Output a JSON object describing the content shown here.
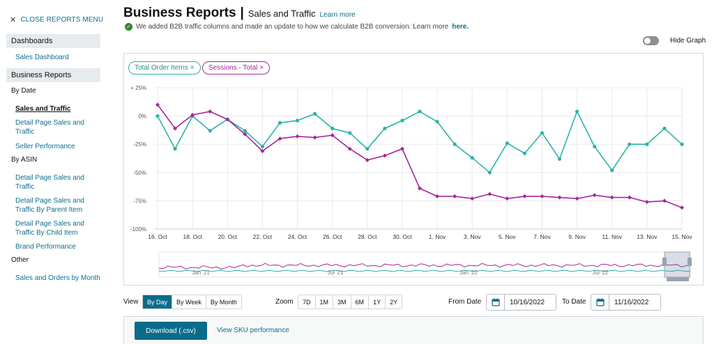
{
  "sidebar": {
    "close_label": "CLOSE REPORTS MENU",
    "dashboards": "Dashboards",
    "sales_dashboard": "Sales Dashboard",
    "business_reports": "Business Reports",
    "by_date": "By Date",
    "by_date_items": [
      "Sales and Traffic",
      "Detail Page Sales and Traffic",
      "Seller Performance"
    ],
    "by_asin": "By ASIN",
    "by_asin_items": [
      "Detail Page Sales and Traffic",
      "Detail Page Sales and Traffic By Parent Item",
      "Detail Page Sales and Traffic By Child Item",
      "Brand Performance"
    ],
    "other": "Other",
    "other_items": [
      "Sales and Orders by Month"
    ]
  },
  "header": {
    "title": "Business Reports",
    "pipe": "|",
    "subtitle": "Sales and Traffic",
    "learn_more": "Learn more",
    "notice": "We added B2B traffic columns and made an update to how we calculate B2B conversion. Learn more",
    "notice_link": "here."
  },
  "graph_toggle": {
    "label": "Hide Graph",
    "on": false
  },
  "chips": {
    "total_order_items": "Total Order Items",
    "sessions_total": "Sessions - Total",
    "remove": "×"
  },
  "colors": {
    "teal": "#2bb3a8",
    "magenta": "#a3289a",
    "accent": "#0a6c8a",
    "link": "#0f6e8c"
  },
  "chart_data": {
    "type": "line",
    "x": [
      "16. Oct",
      "17. Oct",
      "18. Oct",
      "19. Oct",
      "20. Oct",
      "21. Oct",
      "22. Oct",
      "23. Oct",
      "24. Oct",
      "25. Oct",
      "26. Oct",
      "27. Oct",
      "28. Oct",
      "29. Oct",
      "30. Oct",
      "31. Oct",
      "1. Nov",
      "2. Nov",
      "3. Nov",
      "4. Nov",
      "5. Nov",
      "6. Nov",
      "7. Nov",
      "8. Nov",
      "9. Nov",
      "10. Nov",
      "11. Nov",
      "12. Nov",
      "13. Nov",
      "14. Nov",
      "15. Nov"
    ],
    "x_ticks": [
      "16. Oct",
      "18. Oct",
      "20. Oct",
      "22. Oct",
      "24. Oct",
      "26. Oct",
      "28. Oct",
      "30. Oct",
      "1. Nov",
      "3. Nov",
      "5. Nov",
      "7. Nov",
      "9. Nov",
      "11. Nov",
      "13. Nov",
      "15. Nov"
    ],
    "y_ticks": [
      "+ 25%",
      "0%",
      "-25%",
      "-50%",
      "-75%",
      "-100%"
    ],
    "ylim": [
      -100,
      25
    ],
    "series": [
      {
        "name": "Total Order Items",
        "color": "#2bb3a8",
        "values": [
          0,
          -29,
          0,
          -13,
          -3,
          -13,
          -27,
          -6,
          -4,
          2,
          -11,
          -15,
          -29,
          -11,
          -4,
          4,
          -5,
          -25,
          -37,
          -50,
          -24,
          -33,
          -15,
          -38,
          4,
          -27,
          -48,
          -25,
          -25,
          -11,
          -25
        ]
      },
      {
        "name": "Sessions - Total",
        "color": "#a3289a",
        "values": [
          10,
          -11,
          1,
          4,
          -3,
          -16,
          -31,
          -20,
          -18,
          -19,
          -17,
          -29,
          -39,
          -35,
          -29,
          -64,
          -71,
          -71,
          -73,
          -69,
          -73,
          -71,
          -71,
          -72,
          -73,
          -70,
          -72,
          -72,
          -76,
          -75,
          -81
        ]
      }
    ],
    "navigator_labels": [
      "Jan '21",
      "Jul '21",
      "Jan '22",
      "Jul '22"
    ],
    "grid": true
  },
  "controls": {
    "view_label": "View",
    "view_options": [
      "By Day",
      "By Week",
      "By Month"
    ],
    "view_selected": "By Day",
    "zoom_label": "Zoom",
    "zoom_options": [
      "7D",
      "1M",
      "3M",
      "6M",
      "1Y",
      "2Y"
    ],
    "from_label": "From Date",
    "from_value": "10/16/2022",
    "to_label": "To Date",
    "to_value": "11/16/2022"
  },
  "actions": {
    "download": "Download (.csv)",
    "sku": "View SKU performance"
  }
}
